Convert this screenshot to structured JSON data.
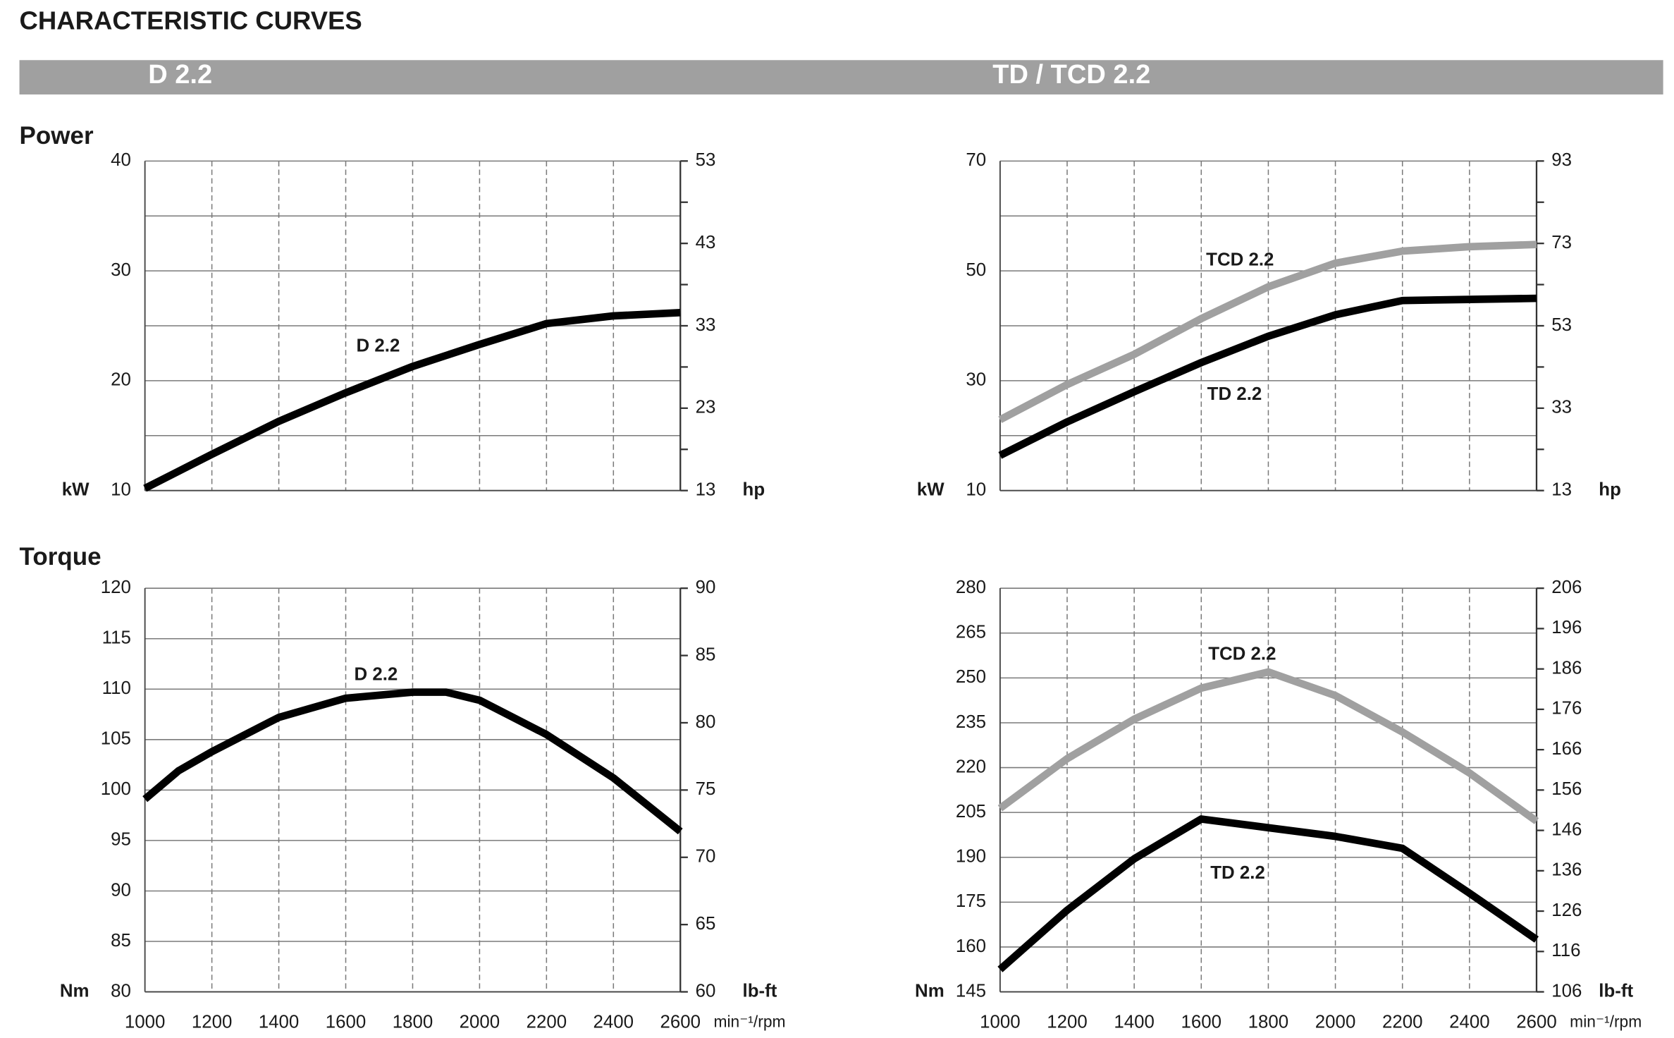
{
  "title": "CHARACTERISTIC CURVES",
  "columns": [
    "D 2.2",
    "TD / TCD 2.2"
  ],
  "rows": [
    "Power",
    "Torque"
  ],
  "chart_data": [
    {
      "type": "line",
      "x": [
        1000,
        1200,
        1400,
        1600,
        1800,
        2000,
        2200,
        2400,
        2600
      ],
      "xlim": [
        1000,
        2600
      ],
      "xticks": [
        1000,
        1200,
        1400,
        1600,
        1800,
        2000,
        2200,
        2400,
        2600
      ],
      "show_xtick_labels": false,
      "ylabel": "kW",
      "ylim": [
        10,
        40
      ],
      "yticks": [
        10,
        20,
        30,
        40
      ],
      "yminor": [
        15,
        25,
        35
      ],
      "y2label": "hp",
      "y2lim": [
        13,
        53
      ],
      "y2ticks": [
        13,
        23,
        33,
        43,
        53
      ],
      "y2minor": [
        18,
        28,
        38,
        48
      ],
      "grid": true,
      "series": [
        {
          "name": "D 2.2",
          "color": "#000000",
          "values": [
            10.2,
            13.3,
            16.3,
            18.9,
            21.3,
            23.3,
            25.2,
            25.9,
            26.2
          ]
        }
      ]
    },
    {
      "type": "line",
      "x": [
        1000,
        1200,
        1400,
        1600,
        1800,
        2000,
        2200,
        2400,
        2600
      ],
      "xlim": [
        1000,
        2600
      ],
      "xticks": [
        1000,
        1200,
        1400,
        1600,
        1800,
        2000,
        2200,
        2400,
        2600
      ],
      "show_xtick_labels": false,
      "ylabel": "kW",
      "ylim": [
        10,
        70
      ],
      "yticks": [
        10,
        30,
        50,
        70
      ],
      "yminor": [
        20,
        40,
        60
      ],
      "y2label": "hp",
      "y2lim": [
        13,
        93
      ],
      "y2ticks": [
        13,
        33,
        53,
        73,
        93
      ],
      "y2minor": [
        23,
        43,
        63,
        83
      ],
      "grid": true,
      "series": [
        {
          "name": "TD 2.2",
          "color": "#000000",
          "values": [
            16.4,
            22.5,
            28,
            33.3,
            38.1,
            42,
            44.6,
            44.8,
            45
          ]
        },
        {
          "name": "TCD 2.2",
          "color": "#a0a0a0",
          "values": [
            22.9,
            29.3,
            34.8,
            41.3,
            47.1,
            51.4,
            53.6,
            54.4,
            54.8
          ]
        }
      ]
    },
    {
      "type": "line",
      "x": [
        1000,
        1100,
        1200,
        1400,
        1600,
        1800,
        1900,
        2000,
        2200,
        2400,
        2600
      ],
      "xlim": [
        1000,
        2600
      ],
      "xticks": [
        1000,
        1200,
        1400,
        1600,
        1800,
        2000,
        2200,
        2400,
        2600
      ],
      "show_xtick_labels": true,
      "xlabel": "min⁻¹/rpm",
      "ylabel": "Nm",
      "ylim": [
        80,
        120
      ],
      "yticks": [
        80,
        85,
        90,
        95,
        100,
        105,
        110,
        115,
        120
      ],
      "y2label": "lb-ft",
      "y2lim": [
        60,
        90
      ],
      "y2ticks": [
        60,
        65,
        70,
        75,
        80,
        85,
        90
      ],
      "grid": true,
      "series": [
        {
          "name": "D 2.2",
          "color": "#000000",
          "values": [
            99.1,
            101.9,
            103.8,
            107.2,
            109.1,
            109.7,
            109.7,
            108.9,
            105.5,
            101.2,
            95.9
          ]
        }
      ]
    },
    {
      "type": "line",
      "x": [
        1000,
        1200,
        1400,
        1600,
        1800,
        2000,
        2200,
        2400,
        2600
      ],
      "xlim": [
        1000,
        2600
      ],
      "xticks": [
        1000,
        1200,
        1400,
        1600,
        1800,
        2000,
        2200,
        2400,
        2600
      ],
      "show_xtick_labels": true,
      "xlabel": "min⁻¹/rpm",
      "ylabel": "Nm",
      "ylim": [
        145,
        280
      ],
      "yticks": [
        145,
        160,
        175,
        190,
        205,
        220,
        235,
        250,
        265,
        280
      ],
      "y2label": "lb-ft",
      "y2lim": [
        106,
        206
      ],
      "y2ticks": [
        106,
        116,
        126,
        136,
        146,
        156,
        166,
        176,
        186,
        196,
        206
      ],
      "grid": true,
      "series": [
        {
          "name": "TD 2.2",
          "color": "#000000",
          "values": [
            152.5,
            172.3,
            189.5,
            202.8,
            199.9,
            197,
            193,
            178,
            162.5
          ]
        },
        {
          "name": "TCD 2.2",
          "color": "#a0a0a0",
          "values": [
            206.4,
            223,
            236.2,
            246.6,
            252,
            244.1,
            231.9,
            218.2,
            202.1
          ]
        }
      ]
    }
  ]
}
